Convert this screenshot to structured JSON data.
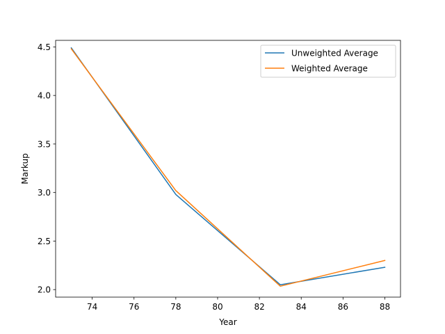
{
  "chart_data": {
    "type": "line",
    "xlabel": "Year",
    "ylabel": "Markup",
    "xlim": [
      72.25,
      88.75
    ],
    "ylim": [
      1.9225,
      4.5675
    ],
    "xticks": [
      74,
      76,
      78,
      80,
      82,
      84,
      86,
      88
    ],
    "yticks": [
      2.0,
      2.5,
      3.0,
      3.5,
      4.0,
      4.5
    ],
    "xtick_labels": [
      "74",
      "76",
      "78",
      "80",
      "82",
      "84",
      "86",
      "88"
    ],
    "ytick_labels": [
      "2.0",
      "2.5",
      "3.0",
      "3.5",
      "4.0",
      "4.5"
    ],
    "grid": false,
    "legend_position": "top-right",
    "series": [
      {
        "name": "Unweighted Average",
        "color": "#1f77b4",
        "x": [
          73,
          78,
          83,
          88
        ],
        "y": [
          4.49,
          2.98,
          2.05,
          2.23
        ]
      },
      {
        "name": "Weighted Average",
        "color": "#ff7f0e",
        "x": [
          73,
          78,
          83,
          88
        ],
        "y": [
          4.48,
          3.02,
          2.035,
          2.3
        ]
      }
    ]
  }
}
